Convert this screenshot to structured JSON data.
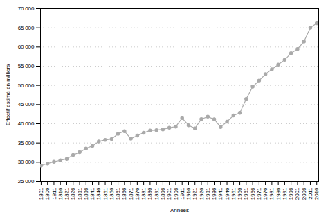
{
  "chart_data": {
    "type": "line",
    "xlabel": "Années",
    "ylabel": "Effectif estimé en milliers",
    "x": [
      1801,
      1806,
      1811,
      1816,
      1821,
      1826,
      1831,
      1836,
      1841,
      1846,
      1851,
      1856,
      1861,
      1866,
      1871,
      1876,
      1881,
      1886,
      1891,
      1896,
      1901,
      1906,
      1911,
      1916,
      1921,
      1926,
      1931,
      1936,
      1941,
      1946,
      1951,
      1956,
      1961,
      1966,
      1971,
      1976,
      1981,
      1986,
      1991,
      1996,
      2001,
      2006,
      2011,
      2016
    ],
    "values": [
      29107,
      29648,
      30126,
      30461,
      30826,
      31859,
      32569,
      33540,
      34230,
      35400,
      35783,
      36040,
      37386,
      38067,
      36102,
      36906,
      37672,
      38218,
      38343,
      38517,
      38962,
      39252,
      41478,
      39600,
      38800,
      41228,
      41835,
      41183,
      39140,
      40550,
      42154,
      42843,
      46458,
      49655,
      51251,
      52909,
      54182,
      55394,
      56652,
      58399,
      59476,
      61399,
      65048,
      66190
    ],
    "color": "#aaaaaa",
    "marker": "circle",
    "xlim": [
      1800.5,
      2017.5
    ],
    "xticks": [
      1801,
      1806,
      1811,
      1816,
      1821,
      1826,
      1831,
      1836,
      1841,
      1846,
      1851,
      1856,
      1861,
      1866,
      1871,
      1876,
      1881,
      1886,
      1891,
      1896,
      1901,
      1906,
      1911,
      1916,
      1921,
      1926,
      1931,
      1936,
      1941,
      1946,
      1951,
      1956,
      1961,
      1966,
      1971,
      1976,
      1981,
      1986,
      1991,
      1996,
      2001,
      2006,
      2011,
      2016
    ],
    "ylim": [
      25000,
      70000
    ],
    "yticks": [
      {
        "value": 25000,
        "label": "25 000"
      },
      {
        "value": 30000,
        "label": "30 000"
      },
      {
        "value": 35000,
        "label": "35 000"
      },
      {
        "value": 40000,
        "label": "40 000"
      },
      {
        "value": 45000,
        "label": "45 000"
      },
      {
        "value": 50000,
        "label": "50 000"
      },
      {
        "value": 55000,
        "label": "55 000"
      },
      {
        "value": 60000,
        "label": "60 000"
      },
      {
        "value": 65000,
        "label": "65 000"
      },
      {
        "value": 70000,
        "label": "70 000"
      }
    ],
    "grid": "y"
  }
}
